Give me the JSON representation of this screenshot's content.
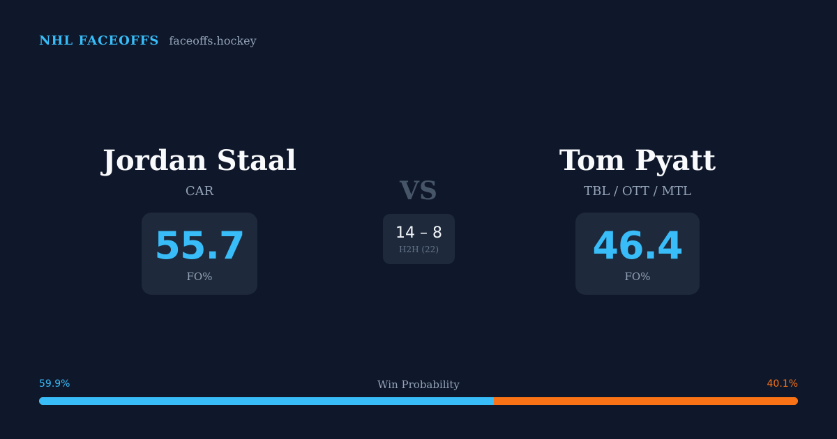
{
  "brand": {
    "name": "NHL FACEOFFS",
    "site": "faceoffs.hockey"
  },
  "player_left": {
    "name": "Jordan Staal",
    "team": "CAR",
    "fo_pct": "55.7",
    "fo_label": "FO%"
  },
  "player_right": {
    "name": "Tom Pyatt",
    "team": "TBL / OTT / MTL",
    "fo_pct": "46.4",
    "fo_label": "FO%"
  },
  "versus": "VS",
  "h2h": {
    "score": "14 – 8",
    "label": "H2H (22)"
  },
  "win_probability": {
    "title": "Win Probability",
    "left_label": "59.9%",
    "right_label": "40.1%",
    "left_value": 59.9,
    "right_value": 40.1
  },
  "colors": {
    "background": "#0f172a",
    "accent_left": "#38bdf8",
    "accent_right": "#f97316",
    "card": "#1e293b"
  }
}
